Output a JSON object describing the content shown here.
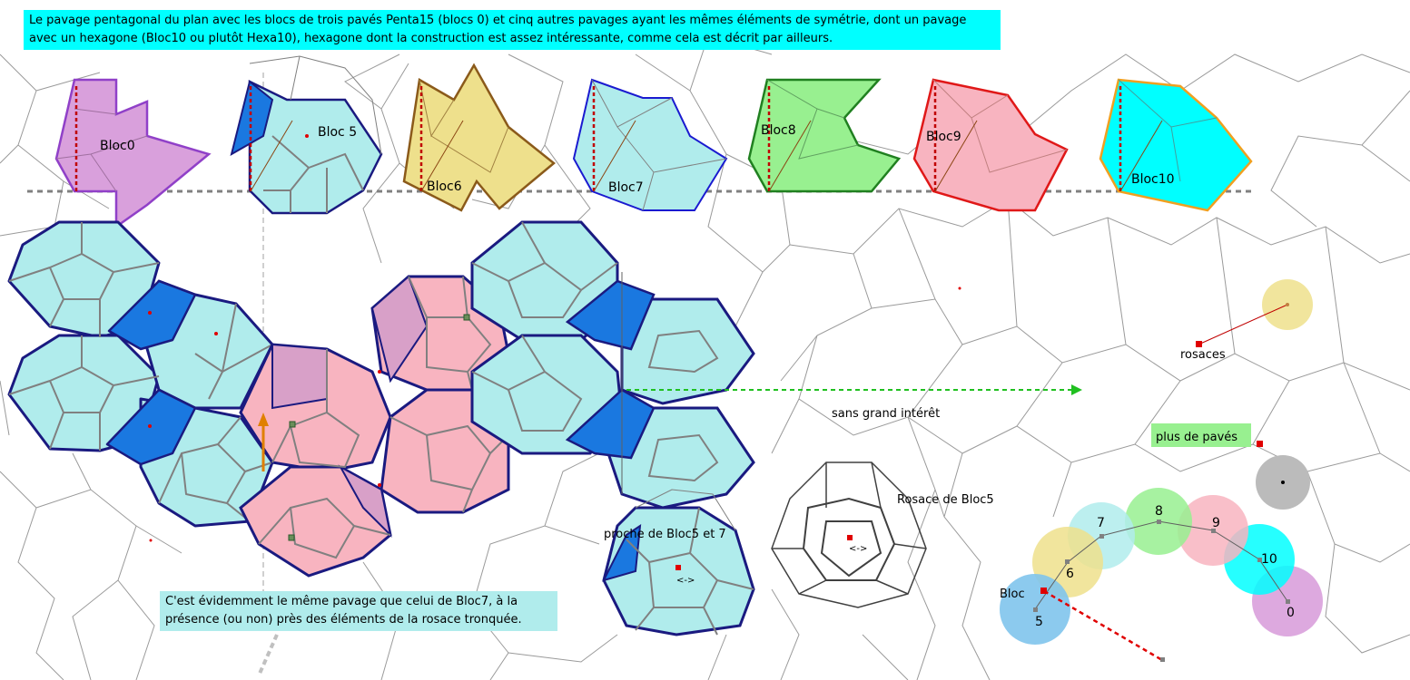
{
  "notes": {
    "top": "Le pavage pentagonal du plan avec les blocs de trois pavés Penta15 (blocs 0) et cinq autres pavages ayant les mêmes éléments de symétrie, dont un pavage avec un hexagone (Bloc10 ou plutôt Hexa10), hexagone dont la construction est assez intéressante, comme cela est décrit par ailleurs.",
    "bottom": "C'est évidemment le même pavage que celui de Bloc7, à la présence (ou non) près des éléments de la rosace tronquée."
  },
  "blocks": [
    {
      "label": "Bloc0",
      "fill": "#d9a0dc",
      "stroke": "#9040c8"
    },
    {
      "label": "Bloc 5",
      "fill": "#b0ecec",
      "stroke": "#1a1a80"
    },
    {
      "label": "Bloc6",
      "fill": "#eee08c",
      "stroke": "#8b5a1a"
    },
    {
      "label": "Bloc7",
      "fill": "#b0ecec",
      "stroke": "#1a1ad0"
    },
    {
      "label": "Bloc8",
      "fill": "#98f090",
      "stroke": "#208020"
    },
    {
      "label": "Bloc9",
      "fill": "#f8b4c0",
      "stroke": "#e01818"
    },
    {
      "label": "Bloc10",
      "fill": "#00ffff",
      "stroke": "#f0a020"
    }
  ],
  "labels": {
    "sans_interet": "sans grand intérêt",
    "rosace_bloc5": "Rosace de Bloc5",
    "proche": "proche de Bloc5 et 7",
    "rosaces": "rosaces",
    "plus_paves": "plus de pavés",
    "bloc": "Bloc",
    "arrow_sym": "<->"
  },
  "circles": [
    {
      "label": "5",
      "fill": "#7fc4ec"
    },
    {
      "label": "6",
      "fill": "#eee08c"
    },
    {
      "label": "7",
      "fill": "#b0ecec"
    },
    {
      "label": "8",
      "fill": "#98f090"
    },
    {
      "label": "9",
      "fill": "#f8b4c0"
    },
    {
      "label": "10",
      "fill": "#00ffff"
    },
    {
      "label": "0",
      "fill": "#d9a0dc"
    }
  ],
  "colors": {
    "tile_cyan": "#b0ecec",
    "tile_blue": "#1a78e0",
    "tile_pink": "#f8b4c0",
    "tile_mauve": "#d8a0c8",
    "rosace_yellow": "#eee08c",
    "grey_circle": "#bbbbbb",
    "green_highlight": "#98f090"
  }
}
